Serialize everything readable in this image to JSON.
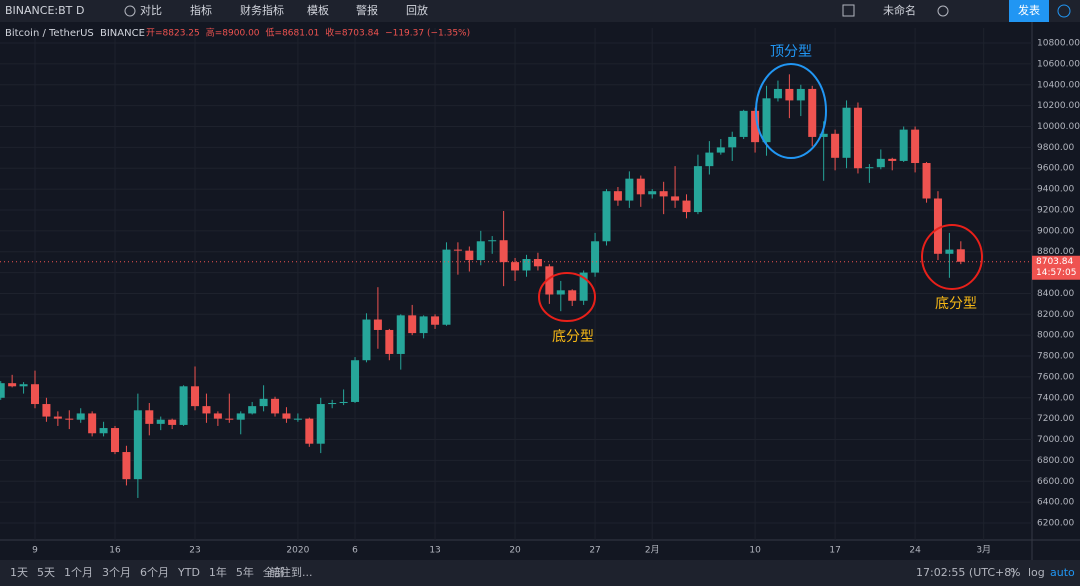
{
  "toolbar": {
    "symbol": "BINANCE:BT",
    "interval": "D",
    "items": [
      "对比",
      "指标",
      "财务指标",
      "模板",
      "警报",
      "回放"
    ],
    "layout_name": "未命名",
    "publish": "发表"
  },
  "chart_data": {
    "type": "candlestick",
    "title": "Bitcoin / TetherUS",
    "exchange": "BINANCE",
    "legend": [
      "开=8823.25",
      "高=8900.00",
      "低=8681.01",
      "收=8703.84",
      "−119.37 (−1.35%)"
    ],
    "up_color": "#26a69a",
    "down_color": "#ef5350",
    "grid": true,
    "categories": [
      null,
      null,
      null,
      "9",
      null,
      null,
      null,
      null,
      null,
      null,
      "16",
      null,
      null,
      null,
      null,
      null,
      null,
      "23",
      null,
      null,
      null,
      null,
      null,
      null,
      null,
      null,
      "2020",
      null,
      null,
      null,
      null,
      "6",
      null,
      null,
      null,
      null,
      null,
      null,
      "13",
      null,
      null,
      null,
      null,
      null,
      null,
      "20",
      null,
      null,
      null,
      null,
      null,
      null,
      "27",
      null,
      null,
      null,
      null,
      "2月",
      null,
      null,
      null,
      null,
      null,
      null,
      null,
      null,
      "10",
      null,
      null,
      null,
      null,
      null,
      null,
      "17",
      null,
      null,
      null,
      null,
      null,
      null,
      "24",
      null,
      null,
      null,
      null,
      null,
      "3月"
    ],
    "open": [
      7400,
      7540,
      7510,
      7530,
      7340,
      7220,
      7200,
      7190,
      7250,
      7060,
      7110,
      6880,
      6620,
      7280,
      7150,
      7190,
      7140,
      7510,
      7320,
      7250,
      7200,
      7190,
      7250,
      7320,
      7390,
      7250,
      7190,
      7200,
      6960,
      7340,
      7350,
      7360,
      7760,
      8150,
      8050,
      7820,
      8190,
      8020,
      8180,
      8100,
      8820,
      8810,
      8720,
      8900,
      8910,
      8700,
      8620,
      8730,
      8660,
      8390,
      8430,
      8330,
      8600,
      8900,
      9380,
      9290,
      9500,
      9350,
      9380,
      9330,
      9290,
      9180,
      9620,
      9750,
      9800,
      9900,
      10150,
      9850,
      10270,
      10360,
      10250,
      10360,
      9900,
      9930,
      9700,
      10180,
      9600,
      9610,
      9690,
      9670,
      9970,
      9650,
      9310,
      8780,
      8823.25,
      null,
      null
    ],
    "high": [
      7560,
      7620,
      7550,
      7660,
      7400,
      7270,
      7280,
      7300,
      7270,
      7170,
      7130,
      6940,
      7440,
      7350,
      7220,
      7200,
      7520,
      7700,
      7440,
      7270,
      7440,
      7270,
      7360,
      7520,
      7410,
      7310,
      7250,
      7210,
      7400,
      7380,
      7480,
      7790,
      8210,
      8460,
      8060,
      8200,
      8290,
      8190,
      8200,
      8890,
      8890,
      8850,
      9000,
      8950,
      9190,
      8740,
      8770,
      8790,
      8680,
      8520,
      8440,
      8620,
      8980,
      9400,
      9420,
      9570,
      9530,
      9400,
      9470,
      9620,
      9350,
      9730,
      9860,
      9880,
      9950,
      10160,
      10180,
      10390,
      10440,
      10500,
      10400,
      10390,
      10050,
      9970,
      10250,
      10230,
      9640,
      9780,
      9700,
      10000,
      10000,
      9660,
      9380,
      8980,
      8900,
      null,
      null
    ],
    "low": [
      7380,
      7500,
      7440,
      7300,
      7170,
      7130,
      7100,
      7160,
      7030,
      7030,
      6860,
      6560,
      6440,
      7040,
      7090,
      7100,
      7130,
      7280,
      7160,
      7130,
      7160,
      7050,
      7240,
      7270,
      7220,
      7160,
      7170,
      6930,
      6870,
      7300,
      7330,
      7350,
      7740,
      7870,
      7760,
      7670,
      8000,
      7970,
      8060,
      8090,
      8580,
      8610,
      8670,
      8780,
      8470,
      8520,
      8560,
      8620,
      8300,
      8230,
      8280,
      8290,
      8560,
      8860,
      9240,
      9220,
      9230,
      9310,
      9160,
      9220,
      9120,
      9160,
      9540,
      9730,
      9670,
      9880,
      9750,
      9720,
      10240,
      10080,
      10100,
      9810,
      9480,
      9580,
      9600,
      9550,
      9460,
      9590,
      9580,
      9660,
      9560,
      9270,
      8720,
      8550,
      8681.01,
      null,
      null
    ],
    "close": [
      7540,
      7510,
      7530,
      7340,
      7220,
      7200,
      7190,
      7250,
      7060,
      7110,
      6880,
      6620,
      7280,
      7150,
      7190,
      7140,
      7510,
      7320,
      7250,
      7200,
      7190,
      7250,
      7320,
      7390,
      7250,
      7200,
      7200,
      6960,
      7340,
      7350,
      7360,
      7760,
      8150,
      8050,
      7820,
      8190,
      8020,
      8180,
      8100,
      8820,
      8810,
      8720,
      8900,
      8910,
      8700,
      8620,
      8730,
      8660,
      8390,
      8430,
      8330,
      8600,
      8900,
      9380,
      9290,
      9500,
      9350,
      9380,
      9330,
      9290,
      9180,
      9620,
      9750,
      9800,
      9900,
      10150,
      9850,
      10270,
      10360,
      10250,
      10360,
      9900,
      9930,
      9700,
      10180,
      9600,
      9610,
      9690,
      9670,
      9970,
      9650,
      9310,
      8780,
      8820,
      8703.84,
      null,
      null
    ],
    "ylim": [
      6037,
      10944
    ],
    "yticks": [
      {
        "value": 6200,
        "label": "6200.00"
      },
      {
        "value": 6400,
        "label": "6400.00"
      },
      {
        "value": 6600,
        "label": "6600.00"
      },
      {
        "value": 6800,
        "label": "6800.00"
      },
      {
        "value": 7000,
        "label": "7000.00"
      },
      {
        "value": 7200,
        "label": "7200.00"
      },
      {
        "value": 7400,
        "label": "7400.00"
      },
      {
        "value": 7600,
        "label": "7600.00"
      },
      {
        "value": 7800,
        "label": "7800.00"
      },
      {
        "value": 8000,
        "label": "8000.00"
      },
      {
        "value": 8200,
        "label": "8200.00"
      },
      {
        "value": 8400,
        "label": "8400.00"
      },
      {
        "value": 8600,
        "label": "8600.00"
      },
      {
        "value": 8800,
        "label": "8800.00"
      },
      {
        "value": 9000,
        "label": "9000.00"
      },
      {
        "value": 9200,
        "label": "9200.00"
      },
      {
        "value": 9400,
        "label": "9400.00"
      },
      {
        "value": 9600,
        "label": "9600.00"
      },
      {
        "value": 9800,
        "label": "9800.00"
      },
      {
        "value": 10000,
        "label": "10000.00"
      },
      {
        "value": 10200,
        "label": "10200.00"
      },
      {
        "value": 10400,
        "label": "10400.00"
      },
      {
        "value": 10600,
        "label": "10600.00"
      },
      {
        "value": 10800,
        "label": "10800.00"
      }
    ],
    "last_price": {
      "value": 8703.84,
      "label": "8703.84"
    },
    "countdown": "14:57:05",
    "annotations": [
      "顶分型",
      "底分型",
      "底分型"
    ]
  },
  "bottom_bar": {
    "ranges": [
      "1天",
      "5天",
      "1个月",
      "3个月",
      "6个月",
      "YTD",
      "1年",
      "5年",
      "全部"
    ],
    "goto": "前往到...",
    "clock": "17:02:55 (UTC+8)",
    "percent": "%",
    "log": "log",
    "auto": "auto"
  }
}
